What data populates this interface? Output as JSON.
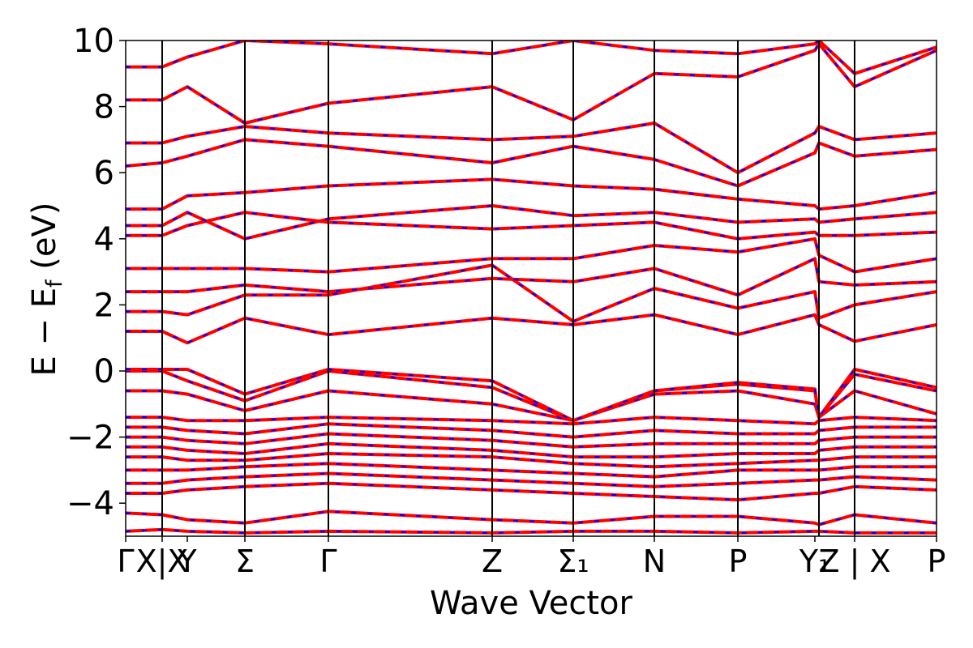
{
  "chart_data": {
    "type": "line",
    "title": "",
    "xlabel": "Wave Vector",
    "ylabel": "E − E_f (eV)",
    "ylabel_main": "E − E",
    "ylabel_sub": "f",
    "ylabel_tail": " (eV)",
    "ylim": [
      -5,
      10
    ],
    "yticks": [
      -4,
      -2,
      0,
      2,
      4,
      6,
      8,
      10
    ],
    "ytick_labels": [
      "−4",
      "−2",
      "0",
      "2",
      "4",
      "6",
      "8",
      "10"
    ],
    "xlim": [
      0,
      1
    ],
    "kpoints": [
      {
        "label": "Γ",
        "x": 0.0
      },
      {
        "label": "X|X",
        "x": 0.045
      },
      {
        "label": "Y",
        "x": 0.076
      },
      {
        "label": "Σ",
        "x": 0.147
      },
      {
        "label": "Γ",
        "x": 0.25
      },
      {
        "label": "Z",
        "x": 0.452
      },
      {
        "label": "Σ₁",
        "x": 0.552
      },
      {
        "label": "N",
        "x": 0.652
      },
      {
        "label": "P",
        "x": 0.755
      },
      {
        "label": "Y₁",
        "x": 0.85
      },
      {
        "label": "Z | X",
        "x": 0.899
      },
      {
        "label": "P",
        "x": 1.0
      }
    ],
    "vlines": [
      0.045,
      0.147,
      0.25,
      0.452,
      0.552,
      0.652,
      0.755,
      0.855,
      0.899
    ],
    "band_color": "#ff0000",
    "band_dash_color": "#0000ff",
    "series": [
      {
        "values": [
          -4.85,
          -4.8,
          -4.85,
          -4.9,
          -4.85,
          -4.9,
          -4.85,
          -4.85,
          -4.9,
          -4.85,
          -4.85,
          -4.9,
          -4.9
        ]
      },
      {
        "values": [
          -4.3,
          -4.35,
          -4.5,
          -4.6,
          -4.25,
          -4.5,
          -4.6,
          -4.4,
          -4.4,
          -4.6,
          -4.65,
          -4.35,
          -4.6
        ]
      },
      {
        "values": [
          -3.7,
          -3.7,
          -3.6,
          -3.5,
          -3.4,
          -3.6,
          -3.7,
          -3.8,
          -3.9,
          -3.7,
          -3.7,
          -3.5,
          -3.6
        ]
      },
      {
        "values": [
          -3.4,
          -3.4,
          -3.3,
          -3.2,
          -3.1,
          -3.3,
          -3.4,
          -3.5,
          -3.4,
          -3.3,
          -3.3,
          -3.2,
          -3.3
        ]
      },
      {
        "values": [
          -3.0,
          -3.0,
          -3.0,
          -2.9,
          -2.8,
          -3.0,
          -3.1,
          -3.2,
          -3.0,
          -3.0,
          -3.0,
          -2.9,
          -2.9
        ]
      },
      {
        "values": [
          -2.6,
          -2.6,
          -2.7,
          -2.7,
          -2.5,
          -2.6,
          -2.8,
          -2.9,
          -2.8,
          -2.7,
          -2.7,
          -2.6,
          -2.6
        ]
      },
      {
        "values": [
          -2.3,
          -2.3,
          -2.4,
          -2.5,
          -2.2,
          -2.4,
          -2.6,
          -2.6,
          -2.5,
          -2.5,
          -2.4,
          -2.3,
          -2.3
        ]
      },
      {
        "values": [
          -2.0,
          -2.0,
          -2.1,
          -2.2,
          -1.9,
          -2.1,
          -2.3,
          -2.2,
          -2.2,
          -2.2,
          -2.1,
          -2.0,
          -2.0
        ]
      },
      {
        "values": [
          -1.7,
          -1.7,
          -1.8,
          -1.9,
          -1.6,
          -1.8,
          -2.0,
          -1.8,
          -1.9,
          -1.9,
          -1.8,
          -1.7,
          -1.7
        ]
      },
      {
        "values": [
          -1.4,
          -1.4,
          -1.5,
          -1.5,
          -1.4,
          -1.5,
          -1.6,
          -1.4,
          -1.5,
          -1.6,
          -1.5,
          -1.4,
          -1.5
        ]
      },
      {
        "values": [
          -0.6,
          -0.6,
          -0.7,
          -1.2,
          -0.6,
          -1.0,
          -1.5,
          -0.7,
          -0.6,
          -1.0,
          -1.4,
          -0.6,
          -1.3
        ]
      },
      {
        "values": [
          0.0,
          0.0,
          -0.3,
          -0.9,
          0.0,
          -0.5,
          -1.5,
          -0.6,
          -0.4,
          -0.6,
          -1.4,
          -0.1,
          -0.6
        ]
      },
      {
        "values": [
          0.05,
          0.05,
          0.05,
          -0.7,
          0.05,
          -0.3,
          -1.5,
          -0.6,
          -0.35,
          -0.55,
          -1.4,
          0.05,
          -0.5
        ]
      },
      {
        "values": [
          1.2,
          1.2,
          0.85,
          1.6,
          1.1,
          1.6,
          1.4,
          1.7,
          1.1,
          1.7,
          1.4,
          0.9,
          1.4
        ]
      },
      {
        "values": [
          1.8,
          1.8,
          1.7,
          2.3,
          2.3,
          3.2,
          1.5,
          2.5,
          1.9,
          2.4,
          1.6,
          2.0,
          2.4
        ]
      },
      {
        "values": [
          2.4,
          2.4,
          2.4,
          2.6,
          2.4,
          2.8,
          2.7,
          3.1,
          2.3,
          3.4,
          2.7,
          2.6,
          2.7
        ]
      },
      {
        "values": [
          3.1,
          3.1,
          3.1,
          3.1,
          3.0,
          3.4,
          3.4,
          3.8,
          3.6,
          4.0,
          3.5,
          3.0,
          3.4
        ]
      },
      {
        "values": [
          4.1,
          4.1,
          4.4,
          4.8,
          4.5,
          4.3,
          4.4,
          4.5,
          4.0,
          4.2,
          4.1,
          4.1,
          4.2
        ]
      },
      {
        "values": [
          4.4,
          4.4,
          4.8,
          4.0,
          4.6,
          5.0,
          4.7,
          4.8,
          4.5,
          4.6,
          4.5,
          4.6,
          4.8
        ]
      },
      {
        "values": [
          4.9,
          4.9,
          5.3,
          5.4,
          5.6,
          5.8,
          5.6,
          5.5,
          5.2,
          5.0,
          4.9,
          5.0,
          5.4
        ]
      },
      {
        "values": [
          6.2,
          6.3,
          6.5,
          7.0,
          6.8,
          6.3,
          6.8,
          6.4,
          5.6,
          6.6,
          6.9,
          6.5,
          6.7
        ]
      },
      {
        "values": [
          6.9,
          6.9,
          7.1,
          7.4,
          7.2,
          7.0,
          7.1,
          7.5,
          6.0,
          7.2,
          7.4,
          7.0,
          7.2
        ]
      },
      {
        "values": [
          8.2,
          8.2,
          8.6,
          7.5,
          8.1,
          8.6,
          7.6,
          9.0,
          8.9,
          9.7,
          9.9,
          8.6,
          9.7
        ]
      },
      {
        "values": [
          9.2,
          9.2,
          9.5,
          10.0,
          9.9,
          9.6,
          10.0,
          9.7,
          9.6,
          9.9,
          10.0,
          9.0,
          9.8
        ]
      }
    ]
  }
}
